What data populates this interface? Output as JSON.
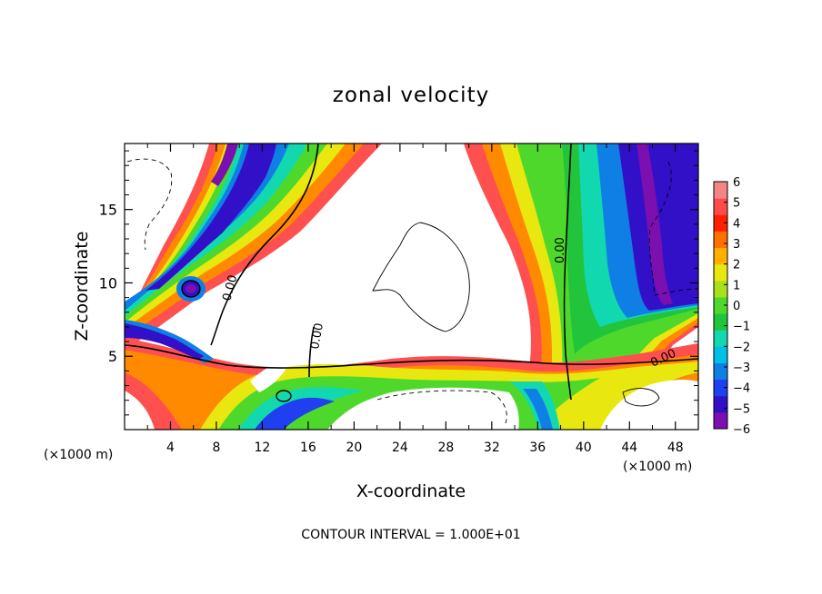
{
  "chart_data": {
    "type": "heatmap",
    "title": "zonal velocity",
    "xlabel": "X-coordinate",
    "ylabel": "Z-coordinate",
    "x_unit": "(×1000 m)",
    "x_unit_right": "(×1000 m)",
    "xlim": [
      0,
      50
    ],
    "ylim": [
      0,
      19.5
    ],
    "x_ticks": [
      "4",
      "8",
      "12",
      "16",
      "20",
      "24",
      "28",
      "32",
      "36",
      "40",
      "44",
      "48"
    ],
    "y_ticks": [
      "5",
      "10",
      "15"
    ],
    "colorbar": {
      "ticks": [
        "6",
        "5",
        "4",
        "3",
        "2",
        "1",
        "0",
        "−1",
        "−2",
        "−3",
        "−4",
        "−5",
        "−6"
      ],
      "range": [
        -6,
        6
      ],
      "colors": [
        "#7b0fb0",
        "#3210c8",
        "#1f3ff0",
        "#0f7fe6",
        "#00c0e8",
        "#12d8b0",
        "#22c43c",
        "#4fd82c",
        "#a8e01c",
        "#e8e810",
        "#ffb000",
        "#ff7000",
        "#ff2000",
        "#ff4a4a",
        "#f58585"
      ]
    },
    "contour_labels": [
      "0.00",
      "0.00",
      "0.00",
      "0.00"
    ],
    "footer": "CONTOUR INTERVAL = 1.000E+01"
  }
}
